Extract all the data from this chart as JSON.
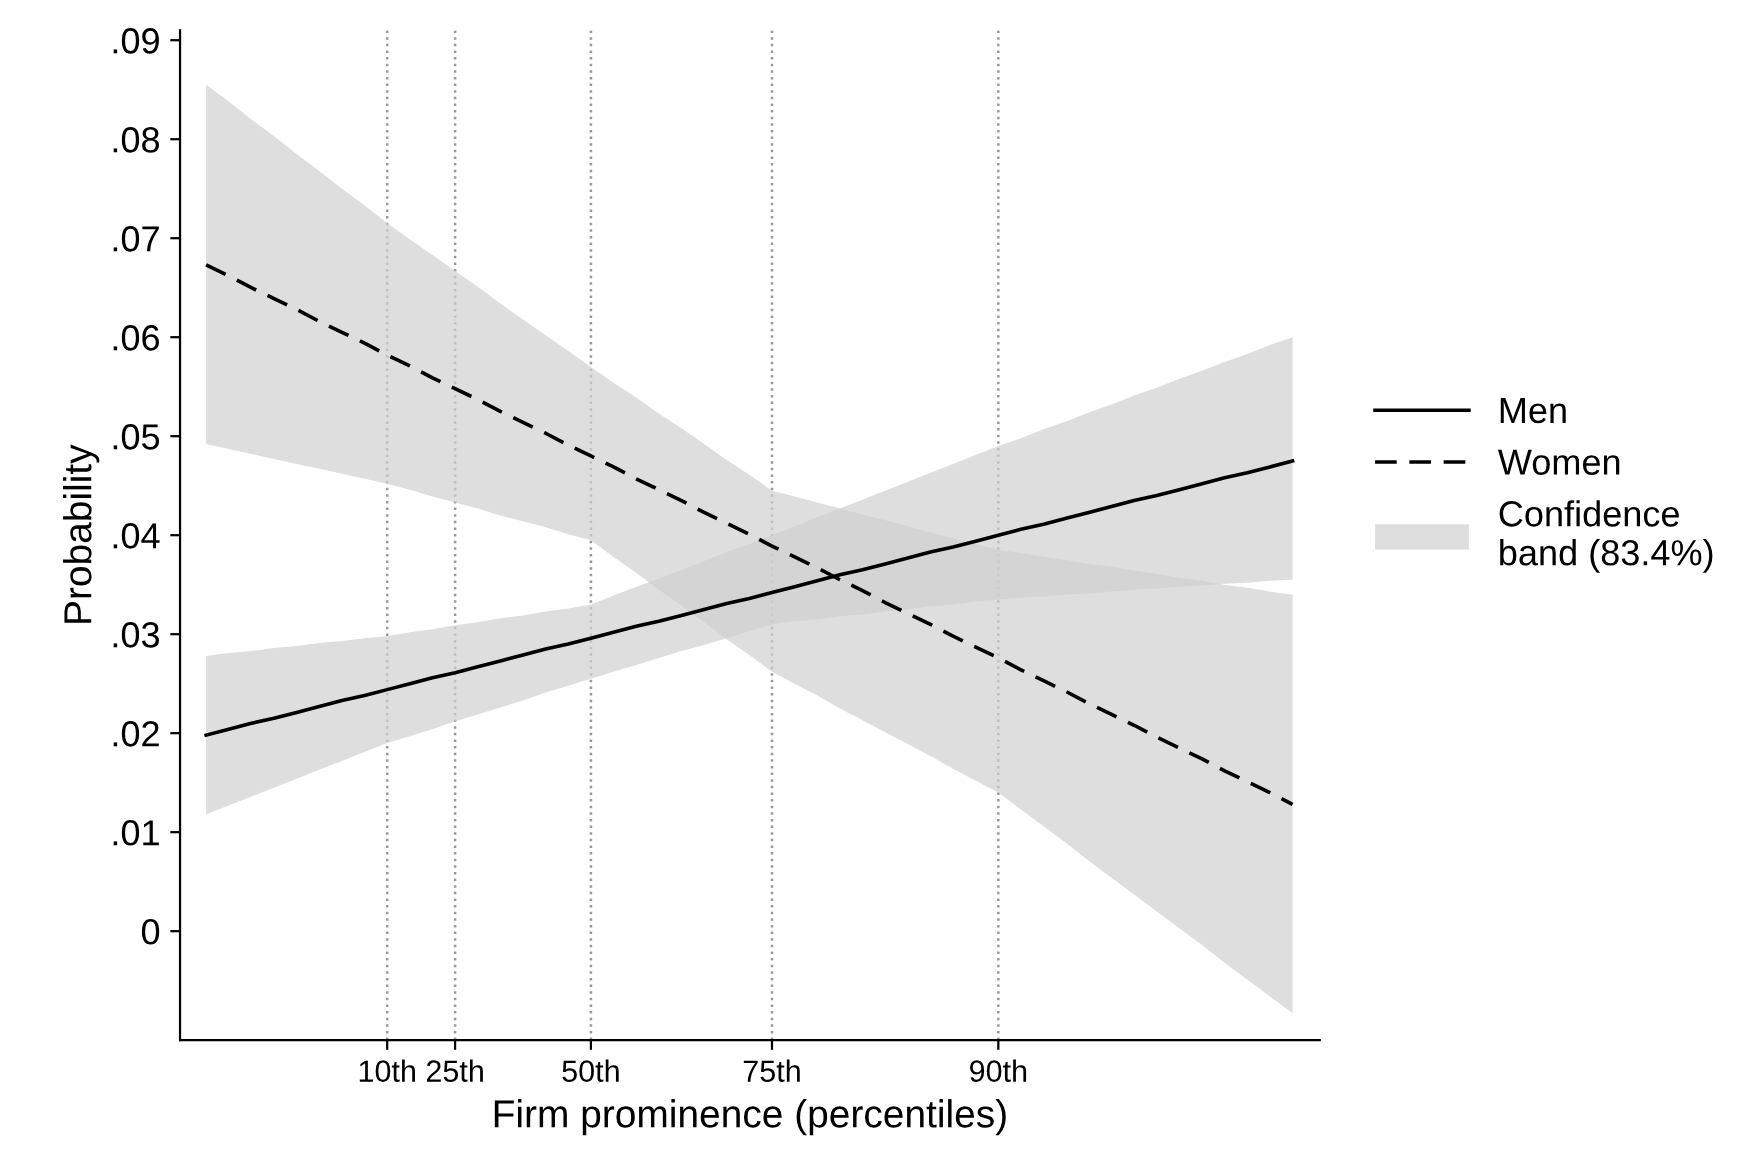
{
  "chart_data": {
    "type": "line",
    "xlabel": "Firm prominence (percentiles)",
    "ylabel": "Probability",
    "categories": [
      null,
      null,
      null,
      null,
      null,
      null,
      null,
      null,
      "10th",
      null,
      null,
      "25th",
      null,
      null,
      null,
      null,
      null,
      "50th",
      null,
      null,
      null,
      null,
      null,
      null,
      null,
      "75th",
      null,
      null,
      null,
      null,
      null,
      null,
      null,
      null,
      null,
      "90th",
      null,
      null,
      null,
      null,
      null,
      null,
      null,
      null,
      null,
      null,
      null,
      null,
      null
    ],
    "ylim": [
      -0.011,
      0.091
    ],
    "yticks": [
      {
        "value": 0,
        "label": "0"
      },
      {
        "value": 0.01,
        "label": ".01"
      },
      {
        "value": 0.02,
        "label": ".02"
      },
      {
        "value": 0.03,
        "label": ".03"
      },
      {
        "value": 0.04,
        "label": ".04"
      },
      {
        "value": 0.05,
        "label": ".05"
      },
      {
        "value": 0.06,
        "label": ".06"
      },
      {
        "value": 0.07,
        "label": ".07"
      },
      {
        "value": 0.08,
        "label": ".08"
      },
      {
        "value": 0.09,
        "label": ".09"
      }
    ],
    "grid": "x",
    "legend": "right",
    "annotations": [
      "Confidence\nband (83.4%)"
    ],
    "series": [
      {
        "name": "Men",
        "color": "#000000",
        "line_style": "solid",
        "values": [
          0.0198,
          0.0204,
          0.021,
          0.0215,
          0.0221,
          0.0227,
          0.0233,
          0.0238,
          0.0244,
          0.025,
          0.0256,
          0.0261,
          0.0267,
          0.0273,
          0.0279,
          0.0285,
          0.029,
          0.0296,
          0.0302,
          0.0308,
          0.0313,
          0.0319,
          0.0325,
          0.0331,
          0.0336,
          0.0342,
          0.0348,
          0.0354,
          0.036,
          0.0365,
          0.0371,
          0.0377,
          0.0383,
          0.0388,
          0.0394,
          0.04,
          0.0406,
          0.0411,
          0.0417,
          0.0423,
          0.0429,
          0.0435,
          0.044,
          0.0446,
          0.0452,
          0.0458,
          0.0463,
          0.0469,
          0.0475
        ],
        "lower": [
          0.0118,
          0.0127,
          0.0136,
          0.0145,
          0.0154,
          0.0163,
          0.0172,
          0.0181,
          0.019,
          0.0197,
          0.0204,
          0.0212,
          0.0219,
          0.0226,
          0.0233,
          0.0241,
          0.0248,
          0.0255,
          0.0262,
          0.0269,
          0.0276,
          0.0283,
          0.0289,
          0.0296,
          0.0303,
          0.031,
          0.0313,
          0.0315,
          0.0318,
          0.032,
          0.0323,
          0.0325,
          0.0328,
          0.033,
          0.0333,
          0.0335,
          0.0337,
          0.0338,
          0.034,
          0.0341,
          0.0343,
          0.0345,
          0.0346,
          0.0348,
          0.0349,
          0.0351,
          0.0352,
          0.0354,
          0.0355
        ],
        "upper": [
          0.0278,
          0.0281,
          0.0283,
          0.0286,
          0.0288,
          0.0291,
          0.0293,
          0.0296,
          0.0298,
          0.0302,
          0.0305,
          0.0309,
          0.0312,
          0.0316,
          0.0319,
          0.0323,
          0.0326,
          0.033,
          0.0339,
          0.0348,
          0.0356,
          0.0365,
          0.0374,
          0.0383,
          0.0391,
          0.04,
          0.0409,
          0.0418,
          0.0427,
          0.0436,
          0.0445,
          0.0454,
          0.0463,
          0.0472,
          0.0481,
          0.049,
          0.0498,
          0.0507,
          0.0515,
          0.0524,
          0.0532,
          0.0541,
          0.0549,
          0.0558,
          0.0566,
          0.0575,
          0.0583,
          0.0592,
          0.06
        ]
      },
      {
        "name": "Women",
        "color": "#000000",
        "line_style": "dashed",
        "values": [
          0.0673,
          0.0662,
          0.065,
          0.0639,
          0.0628,
          0.0616,
          0.0605,
          0.0594,
          0.0582,
          0.0571,
          0.0559,
          0.0548,
          0.0537,
          0.0525,
          0.0514,
          0.0503,
          0.0491,
          0.048,
          0.0469,
          0.0457,
          0.0446,
          0.0435,
          0.0423,
          0.0412,
          0.0401,
          0.0389,
          0.0378,
          0.0367,
          0.0355,
          0.0344,
          0.0332,
          0.0321,
          0.031,
          0.0298,
          0.0287,
          0.0276,
          0.0264,
          0.0253,
          0.0242,
          0.023,
          0.0219,
          0.0208,
          0.0196,
          0.0185,
          0.0174,
          0.0162,
          0.0151,
          0.014,
          0.0128
        ],
        "lower": [
          0.0492,
          0.0487,
          0.0482,
          0.0477,
          0.0472,
          0.0467,
          0.0462,
          0.0457,
          0.0452,
          0.0446,
          0.0439,
          0.0433,
          0.0427,
          0.042,
          0.0414,
          0.0408,
          0.0401,
          0.0395,
          0.0378,
          0.0362,
          0.0345,
          0.0329,
          0.0312,
          0.0295,
          0.0279,
          0.0262,
          0.025,
          0.0238,
          0.0225,
          0.0213,
          0.0201,
          0.0189,
          0.0177,
          0.0164,
          0.0152,
          0.014,
          0.0123,
          0.0106,
          0.0089,
          0.0071,
          0.0054,
          0.0037,
          0.002,
          0.0003,
          -0.0014,
          -0.0032,
          -0.0049,
          -0.0066,
          -0.0083
        ],
        "upper": [
          0.0855,
          0.0838,
          0.082,
          0.0803,
          0.0785,
          0.0768,
          0.075,
          0.0733,
          0.0715,
          0.0699,
          0.0683,
          0.0667,
          0.0651,
          0.0634,
          0.0618,
          0.0602,
          0.0586,
          0.057,
          0.0554,
          0.0539,
          0.0523,
          0.0508,
          0.0492,
          0.0476,
          0.0461,
          0.0445,
          0.0439,
          0.0433,
          0.0427,
          0.0421,
          0.0415,
          0.0409,
          0.0403,
          0.0397,
          0.0391,
          0.0385,
          0.0382,
          0.0378,
          0.0375,
          0.0371,
          0.0368,
          0.0364,
          0.0361,
          0.0357,
          0.0354,
          0.035,
          0.0347,
          0.0343,
          0.034
        ]
      }
    ]
  }
}
